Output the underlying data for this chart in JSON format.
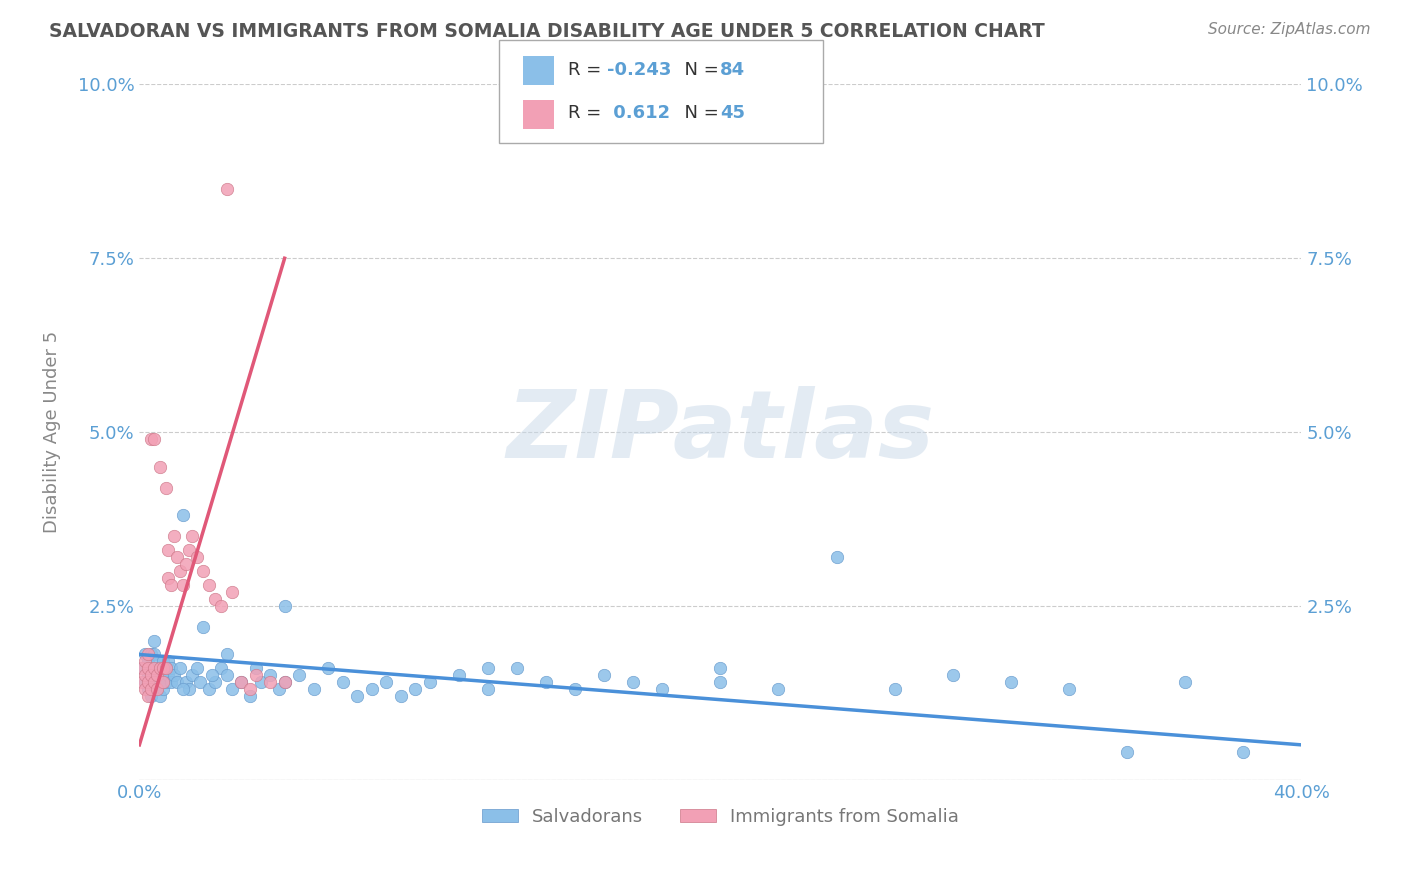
{
  "title": "SALVADORAN VS IMMIGRANTS FROM SOMALIA DISABILITY AGE UNDER 5 CORRELATION CHART",
  "source_text": "Source: ZipAtlas.com",
  "ylabel": "Disability Age Under 5",
  "xmin": 0.0,
  "xmax": 0.4,
  "ymin": 0.0,
  "ymax": 0.1,
  "xticks": [
    0.0,
    0.4
  ],
  "xtick_labels": [
    "0.0%",
    "40.0%"
  ],
  "yticks": [
    0.0,
    0.025,
    0.05,
    0.075,
    0.1
  ],
  "ytick_labels": [
    "",
    "2.5%",
    "5.0%",
    "7.5%",
    "10.0%"
  ],
  "blue_color": "#8bbfe8",
  "pink_color": "#f2a0b5",
  "blue_line_color": "#4a90d9",
  "pink_line_color": "#e05878",
  "R_blue": -0.243,
  "N_blue": 84,
  "R_pink": 0.612,
  "N_pink": 45,
  "legend_label_blue": "Salvadorans",
  "legend_label_pink": "Immigrants from Somalia",
  "watermark": "ZIPatlas",
  "background_color": "#ffffff",
  "grid_color": "#cccccc",
  "title_color": "#555555",
  "axis_label_color": "#5b9fd4",
  "blue_scatter_x": [
    0.001,
    0.002,
    0.002,
    0.003,
    0.003,
    0.003,
    0.004,
    0.004,
    0.004,
    0.005,
    0.005,
    0.005,
    0.005,
    0.006,
    0.006,
    0.006,
    0.007,
    0.007,
    0.007,
    0.008,
    0.008,
    0.008,
    0.009,
    0.009,
    0.01,
    0.01,
    0.011,
    0.011,
    0.012,
    0.013,
    0.014,
    0.015,
    0.016,
    0.017,
    0.018,
    0.02,
    0.021,
    0.022,
    0.024,
    0.026,
    0.028,
    0.03,
    0.032,
    0.035,
    0.038,
    0.04,
    0.042,
    0.045,
    0.048,
    0.05,
    0.055,
    0.06,
    0.065,
    0.07,
    0.075,
    0.08,
    0.085,
    0.09,
    0.095,
    0.1,
    0.11,
    0.12,
    0.13,
    0.14,
    0.15,
    0.16,
    0.17,
    0.18,
    0.2,
    0.22,
    0.24,
    0.26,
    0.28,
    0.3,
    0.32,
    0.34,
    0.36,
    0.38,
    0.2,
    0.12,
    0.05,
    0.03,
    0.015,
    0.025
  ],
  "blue_scatter_y": [
    0.016,
    0.014,
    0.018,
    0.013,
    0.015,
    0.017,
    0.012,
    0.016,
    0.018,
    0.014,
    0.016,
    0.018,
    0.02,
    0.013,
    0.015,
    0.017,
    0.012,
    0.014,
    0.016,
    0.013,
    0.015,
    0.017,
    0.014,
    0.016,
    0.015,
    0.017,
    0.014,
    0.016,
    0.015,
    0.014,
    0.016,
    0.038,
    0.014,
    0.013,
    0.015,
    0.016,
    0.014,
    0.022,
    0.013,
    0.014,
    0.016,
    0.015,
    0.013,
    0.014,
    0.012,
    0.016,
    0.014,
    0.015,
    0.013,
    0.014,
    0.015,
    0.013,
    0.016,
    0.014,
    0.012,
    0.013,
    0.014,
    0.012,
    0.013,
    0.014,
    0.015,
    0.013,
    0.016,
    0.014,
    0.013,
    0.015,
    0.014,
    0.013,
    0.014,
    0.013,
    0.032,
    0.013,
    0.015,
    0.014,
    0.013,
    0.004,
    0.014,
    0.004,
    0.016,
    0.016,
    0.025,
    0.018,
    0.013,
    0.015
  ],
  "pink_scatter_x": [
    0.001,
    0.001,
    0.002,
    0.002,
    0.002,
    0.003,
    0.003,
    0.003,
    0.003,
    0.004,
    0.004,
    0.004,
    0.005,
    0.005,
    0.005,
    0.006,
    0.006,
    0.007,
    0.007,
    0.008,
    0.008,
    0.009,
    0.009,
    0.01,
    0.01,
    0.011,
    0.012,
    0.013,
    0.014,
    0.015,
    0.016,
    0.017,
    0.018,
    0.02,
    0.022,
    0.024,
    0.026,
    0.028,
    0.03,
    0.032,
    0.035,
    0.038,
    0.04,
    0.045,
    0.05
  ],
  "pink_scatter_y": [
    0.014,
    0.016,
    0.013,
    0.015,
    0.017,
    0.012,
    0.014,
    0.016,
    0.018,
    0.013,
    0.015,
    0.049,
    0.014,
    0.016,
    0.049,
    0.013,
    0.015,
    0.016,
    0.045,
    0.014,
    0.016,
    0.016,
    0.042,
    0.029,
    0.033,
    0.028,
    0.035,
    0.032,
    0.03,
    0.028,
    0.031,
    0.033,
    0.035,
    0.032,
    0.03,
    0.028,
    0.026,
    0.025,
    0.085,
    0.027,
    0.014,
    0.013,
    0.015,
    0.014,
    0.014
  ],
  "blue_trend_x0": 0.0,
  "blue_trend_x1": 0.4,
  "blue_trend_y0": 0.018,
  "blue_trend_y1": 0.005,
  "pink_trend_x0": 0.0,
  "pink_trend_x1": 0.05,
  "pink_trend_y0": 0.005,
  "pink_trend_y1": 0.075
}
